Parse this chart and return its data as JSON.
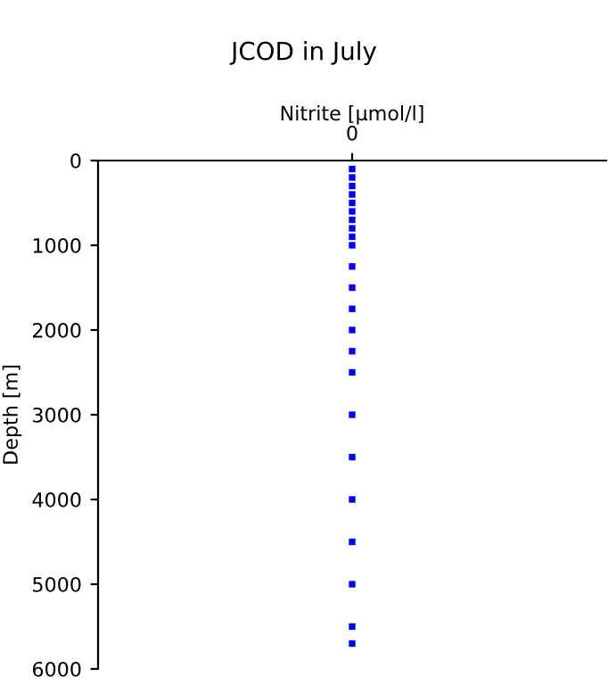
{
  "chart_data": {
    "type": "scatter",
    "title": "JCOD in July",
    "xlabel": "Nitrite [µmol/l]",
    "ylabel": "Depth [m]",
    "categories": [
      "0"
    ],
    "series": [
      {
        "color": "#0000ff",
        "x": [
          "0",
          "0",
          "0",
          "0",
          "0",
          "0",
          "0",
          "0",
          "0",
          "0",
          "0",
          "0",
          "0",
          "0",
          "0",
          "0",
          "0",
          "0",
          "0",
          "0",
          "0",
          "0",
          "0"
        ],
        "values": [
          100,
          200,
          300,
          400,
          500,
          600,
          700,
          800,
          900,
          1000,
          1250,
          1500,
          1750,
          2000,
          2250,
          2500,
          3000,
          3500,
          4000,
          4500,
          5000,
          5500,
          5700
        ]
      }
    ],
    "ylim": [
      6000,
      0
    ],
    "yticks": [
      0,
      1000,
      2000,
      3000,
      4000,
      5000,
      6000
    ],
    "marker": "square",
    "grid": false,
    "legend": false
  }
}
